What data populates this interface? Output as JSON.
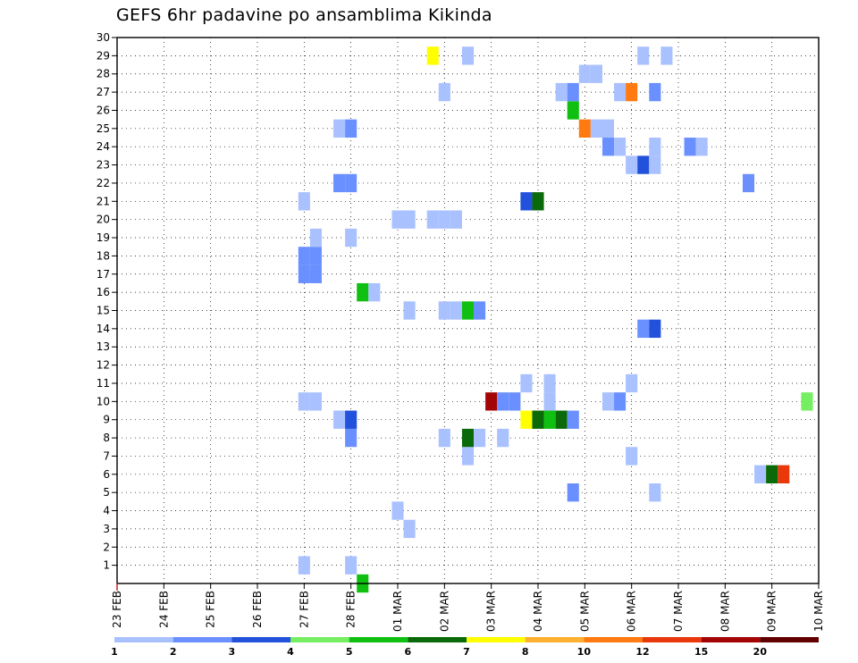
{
  "chart_data": {
    "type": "heatmap",
    "title": "GEFS 6hr padavine po ansamblima Kikinda",
    "xlabel": "",
    "ylabel": "",
    "x_ticks": [
      "23 FEB",
      "24 FEB",
      "25 FEB",
      "26 FEB",
      "27 FEB",
      "28 FEB",
      "01 MAR",
      "02 MAR",
      "03 MAR",
      "04 MAR",
      "05 MAR",
      "06 MAR",
      "07 MAR",
      "08 MAR",
      "09 MAR",
      "10 MAR"
    ],
    "x_range": [
      "23 FEB 00Z",
      "10 MAR 00Z"
    ],
    "x_step": "6hr",
    "y_ticks": [
      1,
      2,
      3,
      4,
      5,
      6,
      7,
      8,
      9,
      10,
      11,
      12,
      13,
      14,
      15,
      16,
      17,
      18,
      19,
      20,
      21,
      22,
      23,
      24,
      25,
      26,
      27,
      28,
      29,
      30
    ],
    "ylim": [
      0,
      30
    ],
    "grid": true,
    "legend": {
      "placement": "bottom",
      "labels": [
        "1",
        "2",
        "3",
        "4",
        "5",
        "6",
        "7",
        "8",
        "10",
        "12",
        "15",
        "20"
      ],
      "colors": [
        "#a9c1ff",
        "#6a90ff",
        "#2252dc",
        "#75ee62",
        "#10c010",
        "#0a6a0a",
        "#ffff00",
        "#ffb030",
        "#ff7a10",
        "#e8380c",
        "#a30505",
        "#600000"
      ]
    },
    "cells": [
      [
        "27 FEB 00Z",
        1,
        1
      ],
      [
        "28 FEB 00Z",
        1,
        1
      ],
      [
        "28 FEB 06Z",
        0,
        5
      ],
      [
        "01 MAR 00Z",
        4,
        1
      ],
      [
        "01 MAR 06Z",
        3,
        1
      ],
      [
        "04 MAR 18Z",
        5,
        2
      ],
      [
        "06 MAR 12Z",
        5,
        1
      ],
      [
        "08 MAR 18Z",
        6,
        1
      ],
      [
        "09 MAR 00Z",
        6,
        6
      ],
      [
        "09 MAR 06Z",
        6,
        10
      ],
      [
        "02 MAR 12Z",
        7,
        1
      ],
      [
        "06 MAR 00Z",
        7,
        1
      ],
      [
        "28 FEB 00Z",
        8,
        2
      ],
      [
        "02 MAR 00Z",
        8,
        1
      ],
      [
        "02 MAR 12Z",
        8,
        6
      ],
      [
        "02 MAR 18Z",
        8,
        1
      ],
      [
        "03 MAR 06Z",
        8,
        1
      ],
      [
        "27 FEB 18Z",
        9,
        1
      ],
      [
        "28 FEB 00Z",
        9,
        1
      ],
      [
        "28 FEB 00Z",
        9,
        3
      ],
      [
        "03 MAR 18Z",
        9,
        7
      ],
      [
        "04 MAR 00Z",
        9,
        6
      ],
      [
        "04 MAR 06Z",
        9,
        5
      ],
      [
        "04 MAR 12Z",
        9,
        6
      ],
      [
        "04 MAR 18Z",
        9,
        2
      ],
      [
        "27 FEB 00Z",
        10,
        1
      ],
      [
        "27 FEB 06Z",
        10,
        1
      ],
      [
        "03 MAR 00Z",
        10,
        11
      ],
      [
        "03 MAR 06Z",
        10,
        2
      ],
      [
        "03 MAR 12Z",
        10,
        2
      ],
      [
        "04 MAR 06Z",
        10,
        1
      ],
      [
        "05 MAR 12Z",
        10,
        1
      ],
      [
        "05 MAR 18Z",
        10,
        2
      ],
      [
        "09 MAR 18Z",
        10,
        4
      ],
      [
        "03 MAR 18Z",
        11,
        1
      ],
      [
        "04 MAR 06Z",
        11,
        1
      ],
      [
        "06 MAR 00Z",
        11,
        1
      ],
      [
        "01 MAR 06Z",
        15,
        1
      ],
      [
        "02 MAR 00Z",
        15,
        1
      ],
      [
        "02 MAR 06Z",
        15,
        1
      ],
      [
        "02 MAR 12Z",
        15,
        5
      ],
      [
        "02 MAR 18Z",
        15,
        2
      ],
      [
        "06 MAR 06Z",
        14,
        2
      ],
      [
        "06 MAR 12Z",
        14,
        3
      ],
      [
        "28 FEB 06Z",
        16,
        5
      ],
      [
        "28 FEB 12Z",
        16,
        1
      ],
      [
        "27 FEB 00Z",
        17,
        2
      ],
      [
        "27 FEB 06Z",
        17,
        2
      ],
      [
        "27 FEB 00Z",
        18,
        2
      ],
      [
        "27 FEB 06Z",
        18,
        2
      ],
      [
        "27 FEB 06Z",
        19,
        1
      ],
      [
        "28 FEB 00Z",
        19,
        1
      ],
      [
        "01 MAR 00Z",
        20,
        1
      ],
      [
        "01 MAR 06Z",
        20,
        1
      ],
      [
        "01 MAR 18Z",
        20,
        1
      ],
      [
        "02 MAR 00Z",
        20,
        1
      ],
      [
        "02 MAR 06Z",
        20,
        1
      ],
      [
        "27 FEB 00Z",
        21,
        1
      ],
      [
        "03 MAR 18Z",
        21,
        3
      ],
      [
        "04 MAR 00Z",
        21,
        6
      ],
      [
        "27 FEB 18Z",
        22,
        2
      ],
      [
        "28 FEB 00Z",
        22,
        2
      ],
      [
        "08 MAR 12Z",
        22,
        2
      ],
      [
        "06 MAR 00Z",
        23,
        1
      ],
      [
        "06 MAR 06Z",
        23,
        3
      ],
      [
        "06 MAR 12Z",
        23,
        1
      ],
      [
        "05 MAR 12Z",
        24,
        2
      ],
      [
        "05 MAR 18Z",
        24,
        1
      ],
      [
        "06 MAR 12Z",
        24,
        1
      ],
      [
        "07 MAR 06Z",
        24,
        2
      ],
      [
        "07 MAR 12Z",
        24,
        1
      ],
      [
        "27 FEB 18Z",
        25,
        1
      ],
      [
        "28 FEB 00Z",
        25,
        2
      ],
      [
        "05 MAR 00Z",
        25,
        9
      ],
      [
        "05 MAR 06Z",
        25,
        1
      ],
      [
        "05 MAR 12Z",
        25,
        1
      ],
      [
        "04 MAR 18Z",
        26,
        5
      ],
      [
        "02 MAR 00Z",
        27,
        1
      ],
      [
        "04 MAR 12Z",
        27,
        1
      ],
      [
        "04 MAR 18Z",
        27,
        2
      ],
      [
        "05 MAR 18Z",
        27,
        1
      ],
      [
        "06 MAR 00Z",
        27,
        9
      ],
      [
        "06 MAR 12Z",
        27,
        2
      ],
      [
        "05 MAR 00Z",
        28,
        1
      ],
      [
        "05 MAR 06Z",
        28,
        1
      ],
      [
        "01 MAR 18Z",
        29,
        7
      ],
      [
        "02 MAR 12Z",
        29,
        1
      ],
      [
        "06 MAR 06Z",
        29,
        1
      ],
      [
        "06 MAR 18Z",
        29,
        1
      ]
    ]
  }
}
